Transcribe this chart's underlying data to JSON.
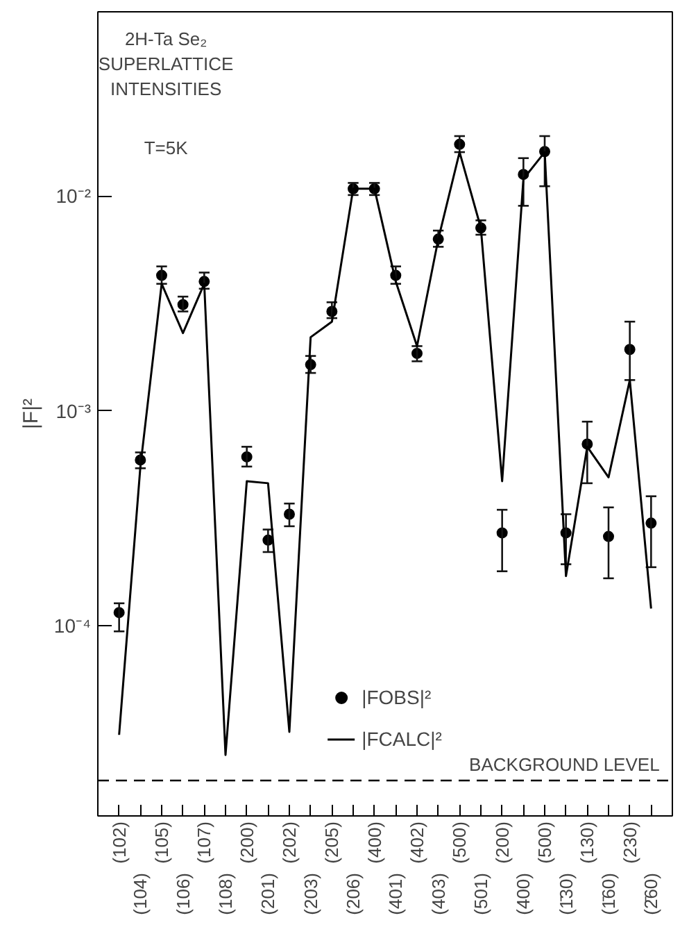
{
  "chart_data": {
    "type": "scatter",
    "title": "2H-Ta Se₂\nSUPERLATTICE\nINTENSITIES",
    "annotations": [
      "T=5K"
    ],
    "ylabel": "|F|²",
    "categories": [
      "(102)",
      "(104)",
      "(105)",
      "(106)",
      "(107)",
      "(108)",
      "(200)",
      "(201)",
      "(202)",
      "(203)",
      "(205)",
      "(206)",
      "(400)",
      "(401)",
      "(402)",
      "(403)",
      "(500)",
      "(501)",
      "(200)",
      "(400)",
      "(500)",
      "(1̄30)",
      "(130)",
      "(1̄60)",
      "(230)",
      "(2̄60)"
    ],
    "log": "y",
    "ylim": [
      1.3e-05,
      0.072
    ],
    "yticks": [
      {
        "value": 0.0001,
        "label": "10⁻⁴"
      },
      {
        "value": 0.001,
        "label": "10⁻³"
      },
      {
        "value": 0.01,
        "label": "10⁻²"
      }
    ],
    "series": [
      {
        "name": "|FOBS|²",
        "color": "#000000",
        "marker": "circle",
        "values": [
          0.000115,
          0.00059,
          0.00427,
          0.00312,
          0.004,
          null,
          0.00061,
          0.00025,
          0.00033,
          0.00164,
          0.0029,
          0.0108,
          0.0108,
          0.00427,
          0.00185,
          0.0063,
          0.0174,
          0.0071,
          0.00027,
          0.0126,
          0.0161,
          0.00027,
          0.0007,
          0.00026,
          0.00193,
          0.0003
        ],
        "errors": [
          [
            9.4e-05,
            0.000127
          ],
          [
            0.00054,
            0.00064
          ],
          [
            0.0039,
            0.0047
          ],
          [
            0.0029,
            0.0034
          ],
          [
            0.0037,
            0.0044
          ],
          null,
          [
            0.00055,
            0.00068
          ],
          [
            0.00022,
            0.00028
          ],
          [
            0.00029,
            0.00037
          ],
          [
            0.0015,
            0.0018
          ],
          [
            0.0027,
            0.0032
          ],
          [
            0.0101,
            0.0115
          ],
          [
            0.0101,
            0.0115
          ],
          [
            0.0039,
            0.0047
          ],
          [
            0.0017,
            0.002
          ],
          [
            0.0058,
            0.0069
          ],
          [
            0.016,
            0.019
          ],
          [
            0.0066,
            0.0077
          ],
          [
            0.000179,
            0.000346
          ],
          [
            0.009,
            0.015
          ],
          [
            0.0111,
            0.019
          ],
          [
            0.000193,
            0.00033
          ],
          [
            0.00046,
            0.00089
          ],
          [
            0.000166,
            0.000355
          ],
          [
            0.00139,
            0.0026
          ],
          [
            0.000187,
            0.0004
          ]
        ]
      },
      {
        "name": "|FCALC|²",
        "type": "line",
        "color": "#000000",
        "line_style": "solid",
        "values": [
          3.1e-05,
          0.00055,
          0.0039,
          0.0023,
          0.0039,
          2.5e-05,
          0.00047,
          0.00046,
          3.2e-05,
          0.0022,
          0.0026,
          0.0108,
          0.0108,
          0.004,
          0.002,
          0.0063,
          0.016,
          0.0071,
          0.00047,
          0.012,
          0.016,
          0.00017,
          0.00068,
          0.00049,
          0.00139,
          0.00012
        ]
      }
    ],
    "ref_lines": [
      {
        "axis": "y",
        "value": 1.9e-05,
        "label": "BACKGROUND LEVEL",
        "line_style": "dashed",
        "color": "#000000"
      }
    ],
    "grid": false,
    "legend": "bottom"
  }
}
